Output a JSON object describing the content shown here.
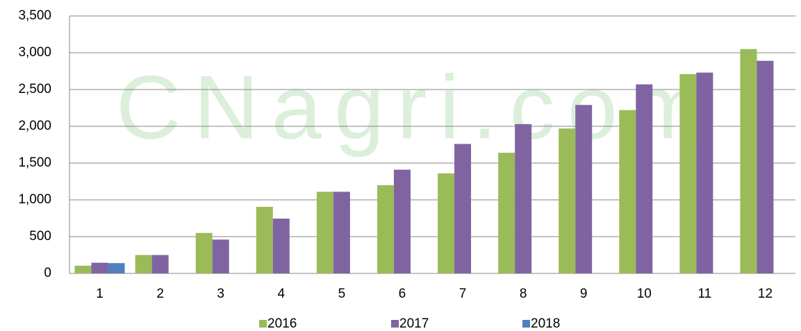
{
  "chart_data": {
    "type": "bar",
    "watermark": "CNagri.com",
    "categories": [
      "1",
      "2",
      "3",
      "4",
      "5",
      "6",
      "7",
      "8",
      "9",
      "10",
      "11",
      "12"
    ],
    "series": [
      {
        "name": "2016",
        "color": "#9bbb59",
        "values": [
          105,
          250,
          550,
          905,
          1110,
          1200,
          1360,
          1640,
          1970,
          2220,
          2710,
          3050
        ]
      },
      {
        "name": "2017",
        "color": "#8064a2",
        "values": [
          145,
          250,
          460,
          745,
          1110,
          1410,
          1760,
          2030,
          2290,
          2570,
          2730,
          2890
        ]
      },
      {
        "name": "2018",
        "color": "#4f81bd",
        "values": [
          140,
          null,
          null,
          null,
          null,
          null,
          null,
          null,
          null,
          null,
          null,
          null
        ]
      }
    ],
    "ylim": [
      0,
      3500
    ],
    "yticks": [
      0,
      500,
      {
        "value": 1000,
        "label": "1,000"
      },
      {
        "value": 1500,
        "label": "1,500"
      },
      {
        "value": 2000,
        "label": "2,000"
      },
      {
        "value": 2500,
        "label": "2,500"
      },
      {
        "value": 3000,
        "label": "3,000"
      },
      {
        "value": 3500,
        "label": "3,500"
      }
    ],
    "grid": true,
    "legend": "bottom"
  }
}
